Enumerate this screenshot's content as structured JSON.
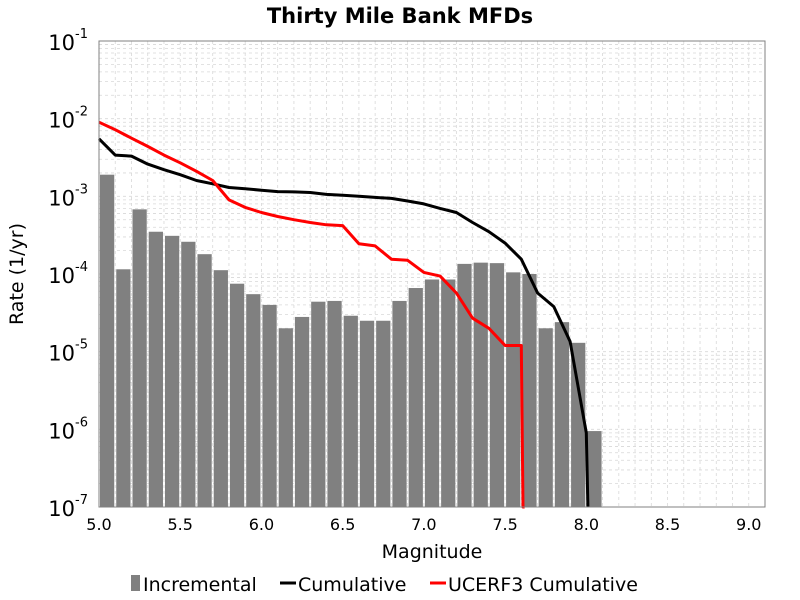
{
  "chart_data": {
    "type": "bar",
    "title": "Thirty Mile Bank MFDs",
    "xlabel": "Magnitude",
    "ylabel": "Rate (1/yr)",
    "xlim": [
      5.0,
      9.1
    ],
    "ylim": [
      1e-07,
      0.1
    ],
    "yscale": "log",
    "grid": true,
    "legend_position": "bottom",
    "x_ticks": [
      "5.0",
      "5.5",
      "6.0",
      "6.5",
      "7.0",
      "7.5",
      "8.0",
      "8.5",
      "9.0"
    ],
    "y_ticks": [
      {
        "base": "10",
        "exp": "-1"
      },
      {
        "base": "10",
        "exp": "-2"
      },
      {
        "base": "10",
        "exp": "-3"
      },
      {
        "base": "10",
        "exp": "-4"
      },
      {
        "base": "10",
        "exp": "-5"
      },
      {
        "base": "10",
        "exp": "-6"
      },
      {
        "base": "10",
        "exp": "-7"
      }
    ],
    "series": [
      {
        "name": "Incremental",
        "type": "bar",
        "color": "#808080",
        "bar_width": 0.1,
        "x": [
          5.05,
          5.15,
          5.25,
          5.35,
          5.45,
          5.55,
          5.65,
          5.75,
          5.85,
          5.95,
          6.05,
          6.15,
          6.25,
          6.35,
          6.45,
          6.55,
          6.65,
          6.75,
          6.85,
          6.95,
          7.05,
          7.15,
          7.25,
          7.35,
          7.45,
          7.55,
          7.65,
          7.75,
          7.85,
          7.95,
          8.05
        ],
        "y": [
          0.0019,
          0.000115,
          0.00068,
          0.00035,
          0.00031,
          0.00026,
          0.00018,
          0.000112,
          7.5e-05,
          5.5e-05,
          4e-05,
          2e-05,
          2.8e-05,
          4.4e-05,
          4.5e-05,
          2.9e-05,
          2.5e-05,
          2.5e-05,
          4.5e-05,
          6.6e-05,
          8.5e-05,
          8.5e-05,
          0.000135,
          0.00014,
          0.000138,
          0.000105,
          0.0001,
          2e-05,
          2.4e-05,
          1.3e-05,
          9.5e-07
        ]
      },
      {
        "name": "Cumulative",
        "type": "line",
        "color": "#000000",
        "x": [
          5.0,
          5.1,
          5.2,
          5.3,
          5.4,
          5.5,
          5.6,
          5.7,
          5.8,
          5.9,
          6.0,
          6.1,
          6.2,
          6.3,
          6.4,
          6.5,
          6.6,
          6.7,
          6.8,
          6.9,
          7.0,
          7.1,
          7.2,
          7.3,
          7.4,
          7.5,
          7.6,
          7.7,
          7.8,
          7.9,
          8.0,
          8.01
        ],
        "y": [
          0.0055,
          0.0034,
          0.0033,
          0.0026,
          0.0022,
          0.0019,
          0.0016,
          0.00145,
          0.0013,
          0.00125,
          0.0012,
          0.00115,
          0.00114,
          0.00112,
          0.00106,
          0.00103,
          0.001,
          0.00097,
          0.00094,
          0.00087,
          0.0008,
          0.0007,
          0.00062,
          0.00046,
          0.00035,
          0.00025,
          0.000155,
          5.7e-05,
          3.8e-05,
          1.35e-05,
          9e-07,
          1e-07
        ]
      },
      {
        "name": "UCERF3 Cumulative",
        "type": "line",
        "color": "#ff0000",
        "x": [
          5.0,
          5.1,
          5.2,
          5.3,
          5.4,
          5.5,
          5.6,
          5.7,
          5.8,
          5.9,
          6.0,
          6.1,
          6.2,
          6.3,
          6.4,
          6.5,
          6.6,
          6.7,
          6.8,
          6.9,
          7.0,
          7.1,
          7.2,
          7.3,
          7.4,
          7.5,
          7.6,
          7.61,
          7.62
        ],
        "y": [
          0.009,
          0.0072,
          0.0056,
          0.0044,
          0.0034,
          0.0027,
          0.0021,
          0.0016,
          0.0009,
          0.00072,
          0.00062,
          0.00055,
          0.0005,
          0.00046,
          0.00043,
          0.00042,
          0.000245,
          0.00023,
          0.000155,
          0.00015,
          0.000105,
          9.4e-05,
          5.7e-05,
          2.7e-05,
          2e-05,
          1.2e-05,
          1.2e-05,
          1e-07,
          1e-07
        ]
      }
    ]
  },
  "colors": {
    "plot_background": "#ffffff",
    "grid": "#d8d8d8",
    "axes": "#808080"
  }
}
